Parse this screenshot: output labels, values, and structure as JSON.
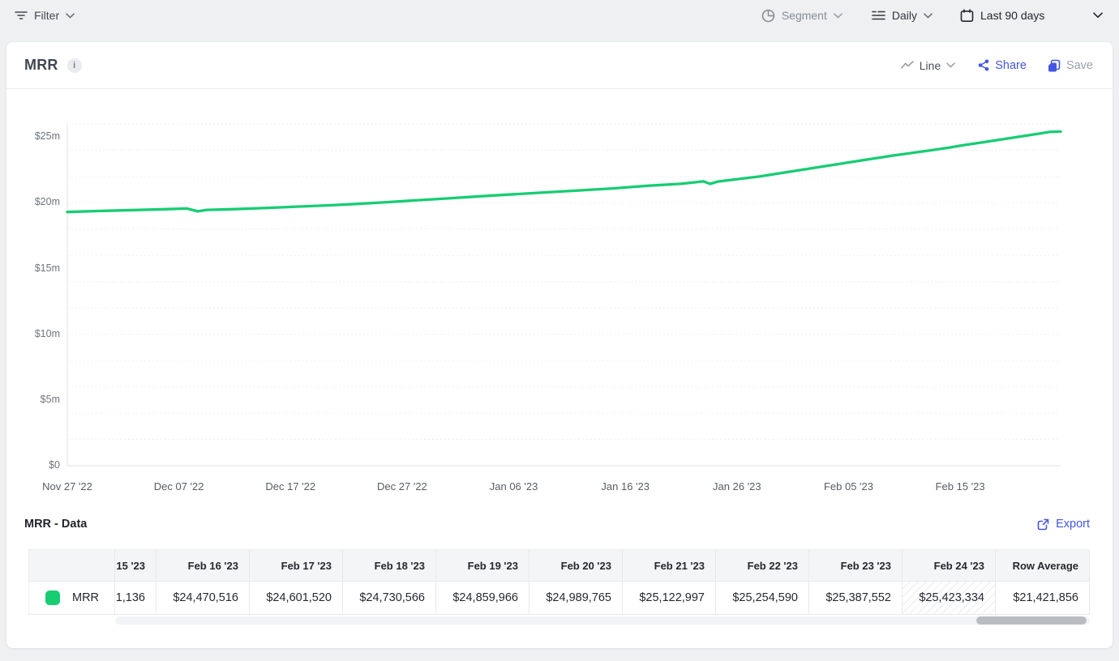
{
  "topbar": {
    "filter_label": "Filter",
    "segment_label": "Segment",
    "interval_label": "Daily",
    "date_range_label": "Last 90 days"
  },
  "card": {
    "title": "MRR",
    "chart_type_label": "Line",
    "share_label": "Share",
    "save_label": "Save"
  },
  "table": {
    "title": "MRR - Data",
    "export_label": "Export",
    "row_label": "MRR",
    "partial_column": {
      "header": "15 '23",
      "value": "1,136"
    },
    "columns": [
      "Feb 16 '23",
      "Feb 17 '23",
      "Feb 18 '23",
      "Feb 19 '23",
      "Feb 20 '23",
      "Feb 21 '23",
      "Feb 22 '23",
      "Feb 23 '23",
      "Feb 24 '23",
      "Row Average"
    ],
    "values": [
      "$24,470,516",
      "$24,601,520",
      "$24,730,566",
      "$24,859,966",
      "$24,989,765",
      "$25,122,997",
      "$25,254,590",
      "$25,387,552",
      "$25,423,334",
      "$21,421,856"
    ],
    "hatched_column": "Feb 24 '23"
  },
  "icons": {
    "filter": "funnel-lines",
    "segment": "pie-circle",
    "interval": "list-lines",
    "daterange": "calendar",
    "chevron": "chevron-down",
    "chart_type": "trend-line",
    "share": "share-nodes",
    "save": "copy",
    "info": "info-circle",
    "export": "external-arrow"
  },
  "colors": {
    "series_green": "#16cd73",
    "link_blue": "#4456de",
    "page_background": "#eef0f2",
    "gridline": "#e8eaec"
  },
  "chart_data": {
    "type": "line",
    "title": "MRR",
    "unit": "USD millions",
    "xlim_days": [
      0,
      89
    ],
    "ylim_m": [
      0,
      26
    ],
    "gridline_step_m": 2,
    "grid": "dotted-horizontal",
    "legend": "none",
    "y_ticks_m": [
      0,
      5,
      10,
      15,
      20,
      25
    ],
    "y_tick_labels": [
      "$0",
      "$5m",
      "$10m",
      "$15m",
      "$20m",
      "$25m"
    ],
    "x_tick_days": [
      0,
      10,
      20,
      30,
      40,
      50,
      60,
      70,
      80
    ],
    "x_tick_labels": [
      "Nov 27 '22",
      "Dec 07 '22",
      "Dec 17 '22",
      "Dec 27 '22",
      "Jan 06 '23",
      "Jan 16 '23",
      "Jan 26 '23",
      "Feb 05 '23",
      "Feb 15 '23"
    ],
    "series": [
      {
        "name": "MRR",
        "color": "#16cd73",
        "points_day_value_m": [
          [
            0,
            19.3
          ],
          [
            3,
            19.38
          ],
          [
            6,
            19.45
          ],
          [
            9,
            19.52
          ],
          [
            10.7,
            19.57
          ],
          [
            11.7,
            19.35
          ],
          [
            12.5,
            19.46
          ],
          [
            15,
            19.52
          ],
          [
            18,
            19.62
          ],
          [
            21,
            19.72
          ],
          [
            24,
            19.83
          ],
          [
            26,
            19.92
          ],
          [
            28,
            20.02
          ],
          [
            31,
            20.18
          ],
          [
            34,
            20.33
          ],
          [
            37,
            20.5
          ],
          [
            40,
            20.65
          ],
          [
            43,
            20.8
          ],
          [
            46,
            20.95
          ],
          [
            49,
            21.1
          ],
          [
            52,
            21.3
          ],
          [
            55,
            21.45
          ],
          [
            57,
            21.63
          ],
          [
            57.6,
            21.44
          ],
          [
            58.3,
            21.62
          ],
          [
            60,
            21.8
          ],
          [
            62,
            22.0
          ],
          [
            65,
            22.4
          ],
          [
            68,
            22.8
          ],
          [
            71,
            23.2
          ],
          [
            74,
            23.6
          ],
          [
            77,
            23.95
          ],
          [
            79,
            24.2
          ],
          [
            80,
            24.341
          ],
          [
            81,
            24.471
          ],
          [
            82,
            24.602
          ],
          [
            83,
            24.731
          ],
          [
            84,
            24.86
          ],
          [
            85,
            24.99
          ],
          [
            86,
            25.123
          ],
          [
            87,
            25.255
          ],
          [
            88,
            25.388
          ],
          [
            89,
            25.423
          ]
        ]
      }
    ]
  }
}
